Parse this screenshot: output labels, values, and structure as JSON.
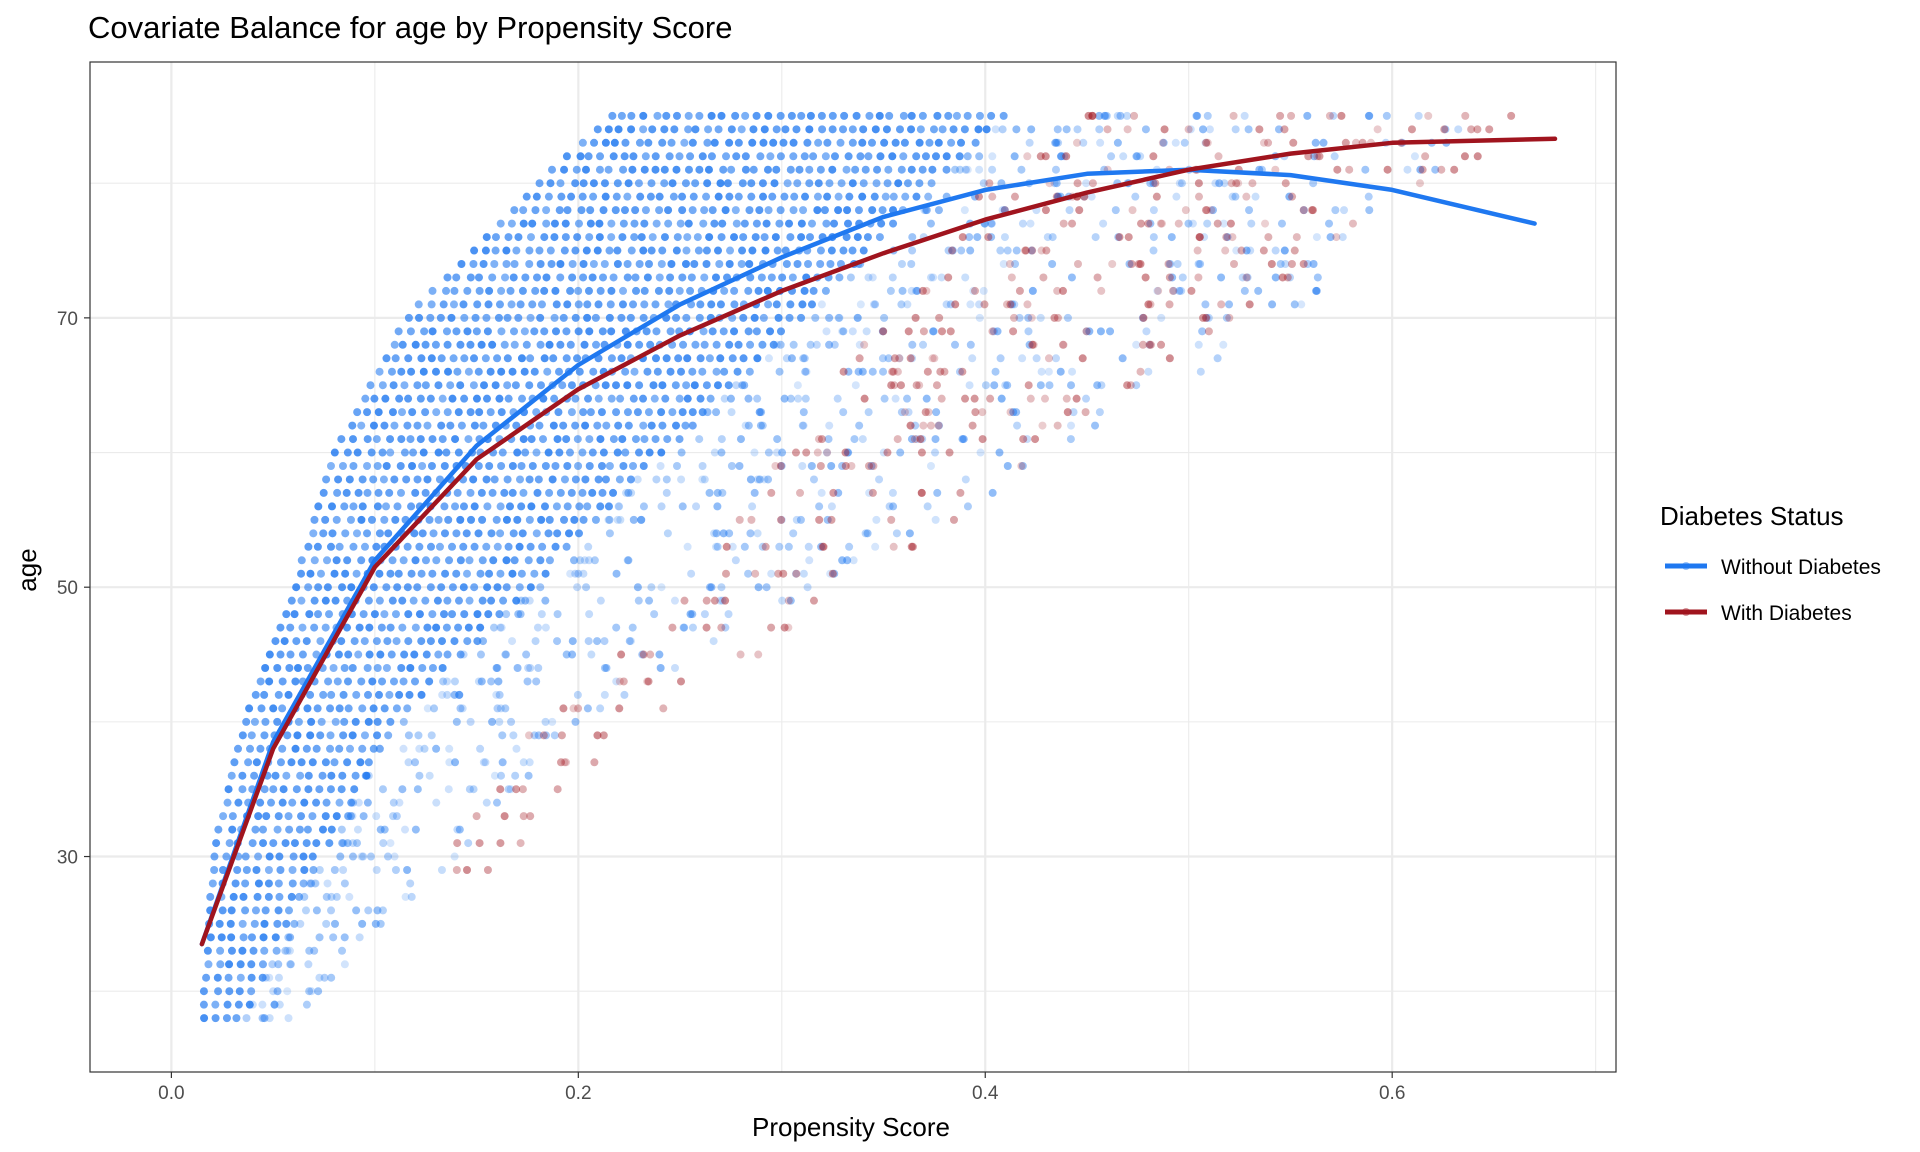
{
  "chart_data": {
    "type": "scatter",
    "title": "Covariate Balance for age by Propensity Score",
    "xlabel": "Propensity Score",
    "ylabel": "age",
    "xlim": [
      -0.04,
      0.71
    ],
    "ylim": [
      14,
      89
    ],
    "x_ticks": [
      0.0,
      0.2,
      0.4,
      0.6
    ],
    "x_tick_labels": [
      "0.0",
      "0.2",
      "0.4",
      "0.6"
    ],
    "y_ticks": [
      30,
      50,
      70
    ],
    "y_tick_labels": [
      "30",
      "50",
      "70"
    ],
    "grid": true,
    "legend": {
      "title": "Diabetes Status",
      "position": "right",
      "entries": [
        "Without Diabetes",
        "With Diabetes"
      ]
    },
    "colors": {
      "without": "#1f78f0",
      "with": "#a0141e",
      "grid": "#ebebeb",
      "panel_border": "#333333"
    },
    "series": [
      {
        "name": "Without Diabetes",
        "kind": "points",
        "age_range": [
          18,
          85
        ],
        "min_score_by_age": [
          [
            18,
            0.015
          ],
          [
            30,
            0.02
          ],
          [
            40,
            0.035
          ],
          [
            50,
            0.06
          ],
          [
            60,
            0.08
          ],
          [
            70,
            0.115
          ],
          [
            80,
            0.18
          ],
          [
            85,
            0.215
          ]
        ],
        "max_score_by_age": [
          [
            18,
            0.06
          ],
          [
            30,
            0.14
          ],
          [
            40,
            0.2
          ],
          [
            50,
            0.32
          ],
          [
            60,
            0.44
          ],
          [
            70,
            0.55
          ],
          [
            80,
            0.62
          ],
          [
            85,
            0.645
          ]
        ],
        "smooth": {
          "x": [
            0.015,
            0.05,
            0.1,
            0.15,
            0.2,
            0.25,
            0.3,
            0.35,
            0.4,
            0.45,
            0.5,
            0.55,
            0.6,
            0.67
          ],
          "y": [
            23.5,
            38.5,
            52.0,
            60.5,
            66.5,
            71.0,
            74.5,
            77.5,
            79.5,
            80.7,
            81.0,
            80.6,
            79.5,
            77.0
          ]
        }
      },
      {
        "name": "With Diabetes",
        "kind": "points",
        "age_range": [
          29,
          85
        ],
        "min_score_by_age": [
          [
            29,
            0.13
          ],
          [
            40,
            0.18
          ],
          [
            50,
            0.25
          ],
          [
            60,
            0.3
          ],
          [
            70,
            0.35
          ],
          [
            80,
            0.4
          ],
          [
            85,
            0.45
          ]
        ],
        "max_score_by_age": [
          [
            29,
            0.16
          ],
          [
            40,
            0.24
          ],
          [
            50,
            0.34
          ],
          [
            60,
            0.43
          ],
          [
            70,
            0.52
          ],
          [
            80,
            0.62
          ],
          [
            85,
            0.68
          ]
        ],
        "smooth": {
          "x": [
            0.015,
            0.05,
            0.1,
            0.15,
            0.2,
            0.25,
            0.3,
            0.35,
            0.4,
            0.45,
            0.5,
            0.55,
            0.6,
            0.68
          ],
          "y": [
            23.5,
            38.0,
            51.5,
            59.5,
            64.7,
            68.7,
            72.0,
            74.8,
            77.3,
            79.3,
            81.0,
            82.2,
            83.0,
            83.3
          ]
        }
      }
    ]
  }
}
